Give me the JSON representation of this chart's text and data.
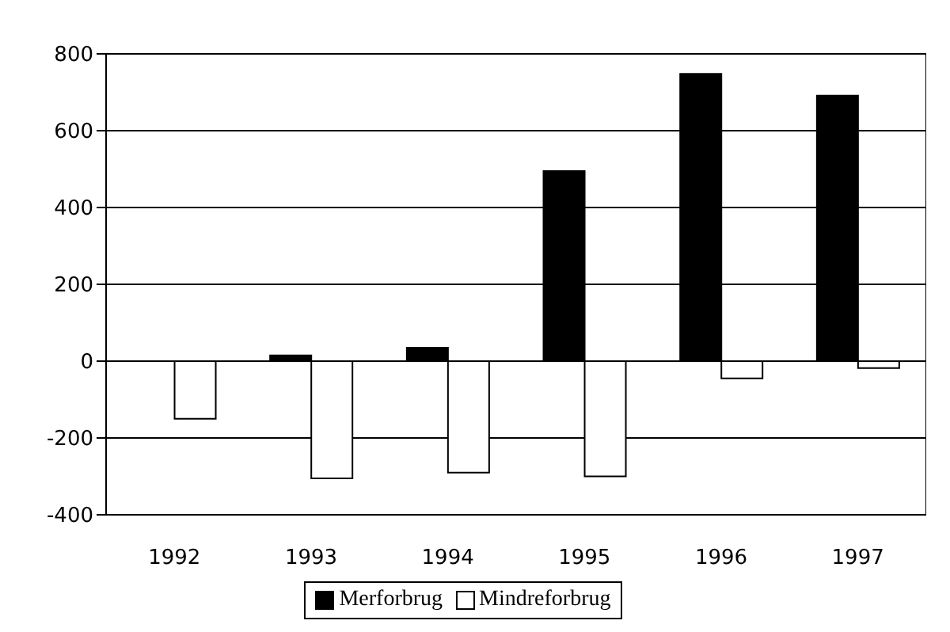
{
  "chart_data": {
    "type": "bar",
    "categories": [
      "1992",
      "1993",
      "1994",
      "1995",
      "1996",
      "1997"
    ],
    "series": [
      {
        "name": "Merforbrug",
        "color": "#000000",
        "values": [
          null,
          15,
          35,
          495,
          748,
          691
        ]
      },
      {
        "name": "Mindreforbrug",
        "color": "#ffffff",
        "values": [
          -150,
          -305,
          -290,
          -300,
          -45,
          -18
        ]
      }
    ],
    "ylim": [
      -400,
      800
    ],
    "yticks": [
      -400,
      -200,
      0,
      200,
      400,
      600,
      800
    ],
    "grid": "y",
    "legend": "bottom"
  }
}
